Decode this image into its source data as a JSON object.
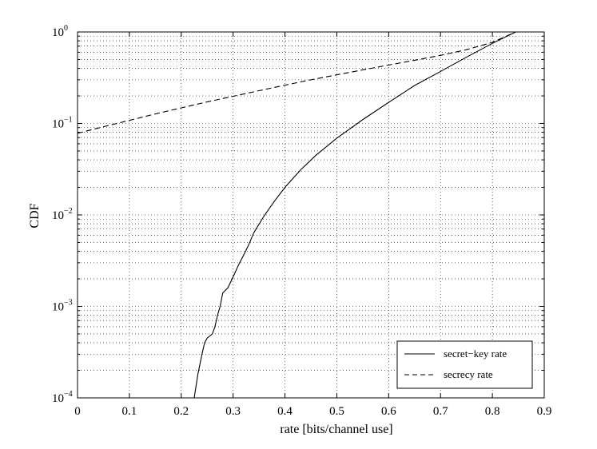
{
  "chart_data": {
    "type": "line",
    "title": "",
    "xlabel": "rate [bits/channel use]",
    "ylabel": "CDF",
    "xlim": [
      0,
      0.9
    ],
    "ylim": [
      0.0001,
      1
    ],
    "yscale": "log",
    "grid": true,
    "legend_position": "bottom-right",
    "x_ticks": [
      "0",
      "0.1",
      "0.2",
      "0.3",
      "0.4",
      "0.5",
      "0.6",
      "0.7",
      "0.8",
      "0.9"
    ],
    "y_ticks": [
      {
        "base": "10",
        "exp": "−4"
      },
      {
        "base": "10",
        "exp": "−3"
      },
      {
        "base": "10",
        "exp": "−2"
      },
      {
        "base": "10",
        "exp": "−1"
      },
      {
        "base": "10",
        "exp": "0"
      }
    ],
    "series": [
      {
        "name": "secret−key rate",
        "line_style": "solid",
        "color": "#000000",
        "x": [
          0.225,
          0.232,
          0.24,
          0.245,
          0.25,
          0.26,
          0.265,
          0.27,
          0.275,
          0.28,
          0.29,
          0.3,
          0.31,
          0.32,
          0.33,
          0.34,
          0.36,
          0.38,
          0.4,
          0.43,
          0.46,
          0.5,
          0.55,
          0.6,
          0.65,
          0.7,
          0.75,
          0.8,
          0.845
        ],
        "y": [
          0.0001,
          0.00018,
          0.0003,
          0.0004,
          0.00045,
          0.0005,
          0.0006,
          0.0008,
          0.001,
          0.0014,
          0.0016,
          0.0021,
          0.0028,
          0.0036,
          0.0047,
          0.0064,
          0.0098,
          0.0142,
          0.02,
          0.031,
          0.045,
          0.069,
          0.11,
          0.17,
          0.26,
          0.37,
          0.53,
          0.75,
          1.0
        ]
      },
      {
        "name": "secrecy rate",
        "line_style": "dashed",
        "color": "#000000",
        "x": [
          0,
          0.05,
          0.1,
          0.15,
          0.2,
          0.25,
          0.3,
          0.35,
          0.4,
          0.45,
          0.5,
          0.55,
          0.6,
          0.65,
          0.7,
          0.75,
          0.8,
          0.845
        ],
        "y": [
          0.078,
          0.092,
          0.108,
          0.127,
          0.148,
          0.172,
          0.198,
          0.228,
          0.262,
          0.3,
          0.34,
          0.385,
          0.435,
          0.49,
          0.555,
          0.64,
          0.77,
          1.0
        ]
      }
    ]
  }
}
